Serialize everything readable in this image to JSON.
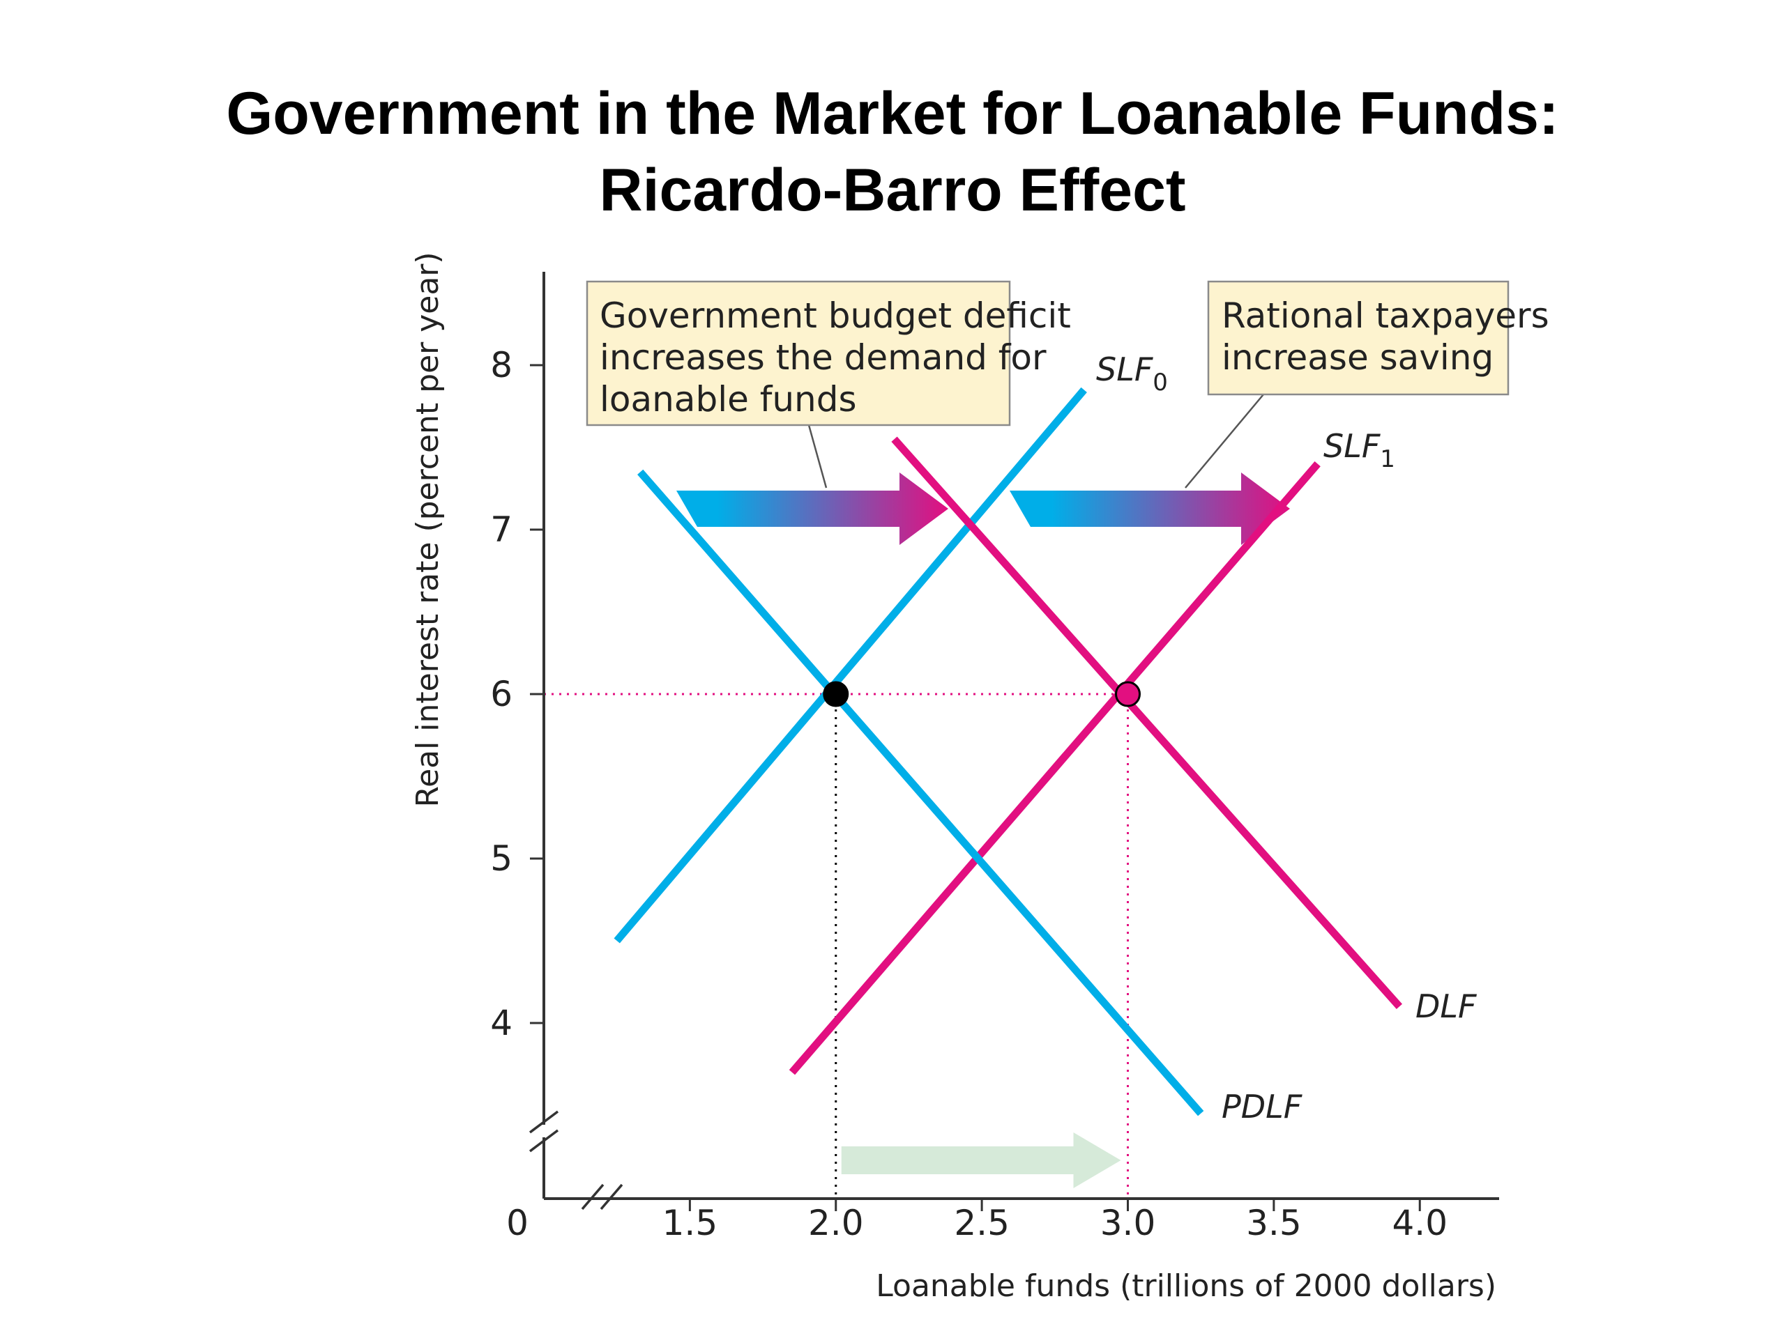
{
  "title_lines": [
    "Government in the Market for Loanable Funds:",
    "Ricardo-Barro Effect"
  ],
  "chart_data": {
    "type": "line",
    "xlabel": "Loanable funds (trillions of 2000 dollars)",
    "ylabel": "Real interest rate (percent per year)",
    "origin_label": "0",
    "xlim": [
      1.0,
      4.2
    ],
    "ylim": [
      2.9,
      8.6
    ],
    "x_ticks": [
      {
        "value": 1.5,
        "label": "1.5"
      },
      {
        "value": 2.0,
        "label": "2.0"
      },
      {
        "value": 2.5,
        "label": "2.5"
      },
      {
        "value": 3.0,
        "label": "3.0",
        "highlight": true
      },
      {
        "value": 3.5,
        "label": "3.5"
      },
      {
        "value": 4.0,
        "label": "4.0"
      }
    ],
    "y_ticks": [
      {
        "value": 4,
        "label": "4"
      },
      {
        "value": 5,
        "label": "5"
      },
      {
        "value": 6,
        "label": "6",
        "highlight": true
      },
      {
        "value": 7,
        "label": "7"
      },
      {
        "value": 8,
        "label": "8"
      }
    ],
    "axis_breaks": true,
    "series": [
      {
        "name": "SLF",
        "sub": "0",
        "color": "#00aee8",
        "points": [
          [
            1.25,
            4.5
          ],
          [
            2.85,
            7.85
          ]
        ]
      },
      {
        "name": "SLF",
        "sub": "1",
        "color": "#e20f80",
        "points": [
          [
            1.85,
            3.7
          ],
          [
            3.65,
            7.4
          ]
        ]
      },
      {
        "name": "PDLF",
        "sub": "",
        "color": "#00aee8",
        "points": [
          [
            1.33,
            7.35
          ],
          [
            3.25,
            3.45
          ]
        ]
      },
      {
        "name": "DLF",
        "sub": "",
        "color": "#e20f80",
        "points": [
          [
            2.2,
            7.55
          ],
          [
            3.93,
            4.1
          ]
        ]
      }
    ],
    "equilibria": [
      {
        "x": 2.0,
        "y": 6,
        "color": "#000000",
        "guide_color": "#000000"
      },
      {
        "x": 3.0,
        "y": 6,
        "color": "#e20f80",
        "guide_color": "#e20f80"
      }
    ],
    "highlight_color": "#e20f80",
    "annotations": [
      {
        "lines": [
          "Government budget deficit",
          "increases the demand for",
          "loanable funds"
        ]
      },
      {
        "lines": [
          "Rational taxpayers",
          "increase saving"
        ]
      }
    ],
    "arrow_colors": {
      "start": "#00aee8",
      "end": "#e20f80",
      "quantity": "#d6ead9",
      "box_fill": "#fdf3cf",
      "box_stroke": "#8a8a8a"
    }
  }
}
